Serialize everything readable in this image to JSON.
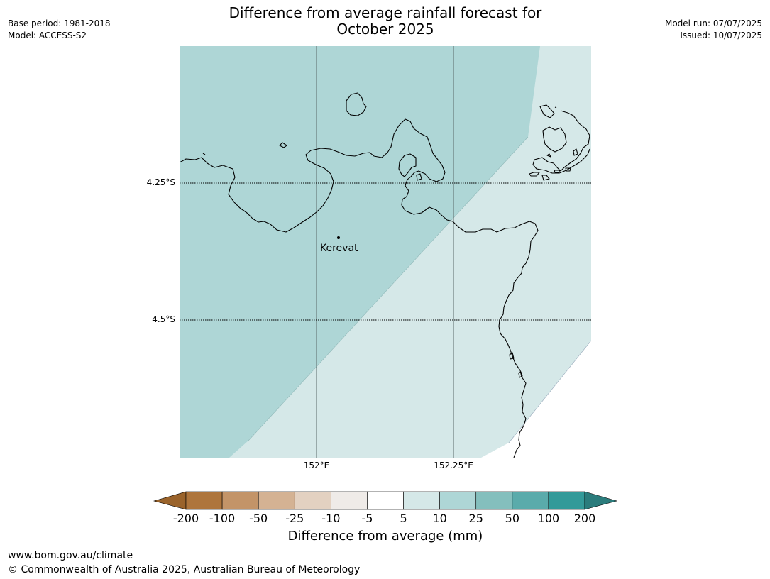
{
  "header": {
    "title_line1": "Difference from average rainfall forecast for",
    "title_line2": "October 2025",
    "base_period": "Base period: 1981-2018",
    "model": "Model: ACCESS-S2",
    "model_run": "Model run: 07/07/2025",
    "issued": "Issued: 10/07/2025"
  },
  "map": {
    "lat_labels": [
      "4.25°S",
      "4.5°S"
    ],
    "lon_labels": [
      "152°E",
      "152.25°E"
    ],
    "places": [
      {
        "name": "Kerevat"
      }
    ],
    "regions": [
      {
        "category": "10 to 25",
        "color": "#aed6d6"
      },
      {
        "category": "5 to 10",
        "color": "#d5e8e8"
      }
    ]
  },
  "colorbar": {
    "title": "Difference from average (mm)",
    "ticks": [
      "-200",
      "-100",
      "-50",
      "-25",
      "-10",
      "-5",
      "5",
      "10",
      "25",
      "50",
      "100",
      "200"
    ],
    "colors": [
      "#9a632b",
      "#ae753c",
      "#c39468",
      "#d4b293",
      "#e3d1c1",
      "#efebe8",
      "#ffffff",
      "#d5e8e8",
      "#aed6d6",
      "#84bfbd",
      "#5aabab",
      "#339a99",
      "#2b7c7c"
    ]
  },
  "footer": {
    "url": "www.bom.gov.au/climate",
    "copyright": "© Commonwealth of Australia 2025, Australian Bureau of Meteorology"
  }
}
